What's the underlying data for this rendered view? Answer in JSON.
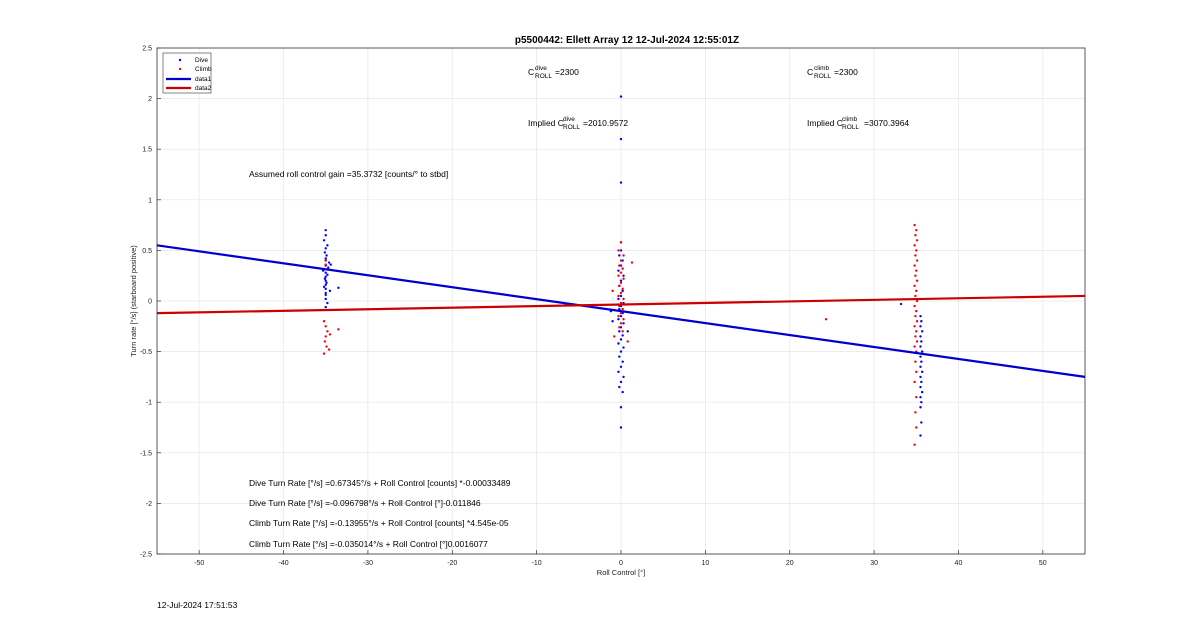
{
  "chart_data": {
    "type": "scatter",
    "title": "p5500442: Ellett Array 12 12-Jul-2024 12:55:01Z",
    "xlabel": "Roll Control [°]",
    "ylabel": "Turn rate [°/s] (starboard positive)",
    "xlim": [
      -55,
      55
    ],
    "ylim": [
      -2.5,
      2.5
    ],
    "xticks": [
      -50,
      -40,
      -30,
      -20,
      -10,
      0,
      10,
      20,
      30,
      40,
      50
    ],
    "yticks": [
      -2.5,
      -2,
      -1.5,
      -1,
      -0.5,
      0,
      0.5,
      1,
      1.5,
      2,
      2.5
    ],
    "xtick_labels": [
      "-50",
      "-40",
      "-30",
      "-20",
      "-10",
      "0",
      "10",
      "20",
      "30",
      "40",
      "50"
    ],
    "ytick_labels": [
      "-2.5",
      "-2",
      "-1.5",
      "-1",
      "-0.5",
      "0",
      "0.5",
      "1",
      "1.5",
      "2",
      "2.5"
    ],
    "grid": true,
    "legend_position": "top-left",
    "series": [
      {
        "name": "Dive",
        "kind": "points",
        "color": "#0000ff",
        "points": [
          [
            -35,
            0.7
          ],
          [
            -35,
            0.65
          ],
          [
            -35.2,
            0.6
          ],
          [
            -34.8,
            0.55
          ],
          [
            -35,
            0.52
          ],
          [
            -35.1,
            0.48
          ],
          [
            -34.9,
            0.45
          ],
          [
            -35,
            0.42
          ],
          [
            -35,
            0.4
          ],
          [
            -34.6,
            0.38
          ],
          [
            -35,
            0.35
          ],
          [
            -34.7,
            0.33
          ],
          [
            -35.3,
            0.3
          ],
          [
            -35,
            0.28
          ],
          [
            -34.8,
            0.26
          ],
          [
            -35,
            0.24
          ],
          [
            -35.1,
            0.22
          ],
          [
            -35,
            0.2
          ],
          [
            -34.9,
            0.18
          ],
          [
            -35,
            0.16
          ],
          [
            -35.2,
            0.14
          ],
          [
            -35,
            0.12
          ],
          [
            -34.5,
            0.1
          ],
          [
            -35,
            0.08
          ],
          [
            -35,
            0.06
          ],
          [
            -33.5,
            0.13
          ],
          [
            -35,
            0.02
          ],
          [
            -34.8,
            -0.02
          ],
          [
            -35,
            -0.06
          ],
          [
            -34.4,
            0.36
          ],
          [
            -35.3,
            0.31
          ],
          [
            0,
            2.02
          ],
          [
            0,
            1.6
          ],
          [
            0,
            1.17
          ],
          [
            0,
            0.58
          ],
          [
            0,
            0.5
          ],
          [
            -0.2,
            0.45
          ],
          [
            0.2,
            0.4
          ],
          [
            0,
            0.35
          ],
          [
            -0.3,
            0.3
          ],
          [
            0.3,
            0.25
          ],
          [
            0,
            0.2
          ],
          [
            -0.2,
            0.15
          ],
          [
            0.2,
            0.1
          ],
          [
            0,
            0.05
          ],
          [
            -0.3,
            0.02
          ],
          [
            0.3,
            -0.02
          ],
          [
            0,
            -0.05
          ],
          [
            -0.2,
            -0.08
          ],
          [
            0.2,
            -0.12
          ],
          [
            0,
            -0.15
          ],
          [
            -0.3,
            -0.18
          ],
          [
            0.3,
            -0.22
          ],
          [
            0,
            -0.26
          ],
          [
            -0.2,
            -0.3
          ],
          [
            0.2,
            -0.34
          ],
          [
            0,
            -0.38
          ],
          [
            -0.3,
            -0.42
          ],
          [
            0.3,
            -0.46
          ],
          [
            0,
            -0.5
          ],
          [
            -0.2,
            -0.55
          ],
          [
            0.2,
            -0.6
          ],
          [
            0,
            -0.65
          ],
          [
            -0.3,
            -0.7
          ],
          [
            0.3,
            -0.75
          ],
          [
            0,
            -0.8
          ],
          [
            -0.2,
            -0.85
          ],
          [
            0.2,
            -0.9
          ],
          [
            0,
            -1.05
          ],
          [
            0,
            -1.25
          ],
          [
            -1,
            -0.2
          ],
          [
            -1.2,
            -0.1
          ],
          [
            0.8,
            -0.3
          ],
          [
            35.5,
            -0.15
          ],
          [
            35.6,
            -0.2
          ],
          [
            35.5,
            -0.25
          ],
          [
            35.7,
            -0.3
          ],
          [
            35.5,
            -0.35
          ],
          [
            35.6,
            -0.4
          ],
          [
            35.5,
            -0.45
          ],
          [
            35.7,
            -0.5
          ],
          [
            35.5,
            -0.55
          ],
          [
            35.6,
            -0.6
          ],
          [
            35.5,
            -0.65
          ],
          [
            35.7,
            -0.7
          ],
          [
            35.5,
            -0.75
          ],
          [
            35.6,
            -0.8
          ],
          [
            35.5,
            -0.85
          ],
          [
            35.7,
            -0.9
          ],
          [
            35.5,
            -0.95
          ],
          [
            35.6,
            -1.0
          ],
          [
            35.5,
            -1.05
          ],
          [
            35.6,
            -1.2
          ],
          [
            35.5,
            -1.33
          ],
          [
            33.2,
            -0.03
          ]
        ]
      },
      {
        "name": "Climb",
        "kind": "points",
        "color": "#ff0000",
        "points": [
          [
            -35.2,
            -0.2
          ],
          [
            -35,
            -0.25
          ],
          [
            -34.8,
            -0.3
          ],
          [
            -35,
            -0.35
          ],
          [
            -35.1,
            -0.4
          ],
          [
            -34.9,
            -0.45
          ],
          [
            -35.2,
            -0.52
          ],
          [
            -34.6,
            -0.48
          ],
          [
            -34.5,
            -0.33
          ],
          [
            -33.5,
            -0.28
          ],
          [
            -35,
            0.4
          ],
          [
            -35,
            0.36
          ],
          [
            0,
            0.58
          ],
          [
            -0.3,
            0.5
          ],
          [
            0.3,
            0.45
          ],
          [
            0,
            0.4
          ],
          [
            -0.2,
            0.35
          ],
          [
            0.2,
            0.32
          ],
          [
            0,
            0.28
          ],
          [
            -0.3,
            0.25
          ],
          [
            0.3,
            0.22
          ],
          [
            0,
            0.18
          ],
          [
            -0.2,
            0.15
          ],
          [
            0.2,
            0.12
          ],
          [
            0,
            0.08
          ],
          [
            -0.3,
            0.05
          ],
          [
            0.3,
            0.02
          ],
          [
            0,
            -0.02
          ],
          [
            -0.2,
            -0.05
          ],
          [
            0.2,
            -0.08
          ],
          [
            0,
            -0.12
          ],
          [
            -0.3,
            -0.15
          ],
          [
            0.3,
            -0.18
          ],
          [
            0,
            -0.22
          ],
          [
            -0.2,
            -0.26
          ],
          [
            0.2,
            -0.3
          ],
          [
            -1,
            0.1
          ],
          [
            0.8,
            -0.4
          ],
          [
            -0.8,
            -0.35
          ],
          [
            1.3,
            0.38
          ],
          [
            24.3,
            -0.18
          ],
          [
            34.8,
            0.75
          ],
          [
            35,
            0.7
          ],
          [
            34.9,
            0.65
          ],
          [
            35.1,
            0.6
          ],
          [
            34.8,
            0.55
          ],
          [
            35,
            0.5
          ],
          [
            34.9,
            0.45
          ],
          [
            35.1,
            0.4
          ],
          [
            34.8,
            0.35
          ],
          [
            35,
            0.3
          ],
          [
            34.9,
            0.25
          ],
          [
            35.1,
            0.2
          ],
          [
            34.8,
            0.15
          ],
          [
            35,
            0.1
          ],
          [
            34.9,
            0.05
          ],
          [
            35.1,
            0.0
          ],
          [
            34.8,
            -0.05
          ],
          [
            35,
            -0.1
          ],
          [
            34.9,
            -0.15
          ],
          [
            35.1,
            -0.2
          ],
          [
            34.8,
            -0.25
          ],
          [
            35,
            -0.3
          ],
          [
            34.9,
            -0.35
          ],
          [
            35.1,
            -0.4
          ],
          [
            34.8,
            -0.45
          ],
          [
            35,
            -0.5
          ],
          [
            34.9,
            -0.6
          ],
          [
            35,
            -0.7
          ],
          [
            34.8,
            -0.8
          ],
          [
            35,
            -0.95
          ],
          [
            34.9,
            -1.1
          ],
          [
            35,
            -1.25
          ],
          [
            34.8,
            -1.42
          ]
        ]
      },
      {
        "name": "data1",
        "kind": "line",
        "color": "#0000cc",
        "points": [
          [
            -55,
            0.55
          ],
          [
            55,
            -0.75
          ]
        ]
      },
      {
        "name": "data2",
        "kind": "line",
        "color": "#cc0000",
        "points": [
          [
            -55,
            -0.12
          ],
          [
            55,
            0.05
          ]
        ]
      }
    ],
    "annotations": {
      "c_dive": {
        "prefix": "C",
        "sup": "dive",
        "sub": "ROLL",
        "value": "=2300"
      },
      "c_climb": {
        "prefix": "C",
        "sup": "climb",
        "sub": "ROLL",
        "value": "=2300"
      },
      "implied_dive": {
        "prefix": "Implied C",
        "sup": "dive",
        "sub": "ROLL",
        "value": "=2010.9572"
      },
      "implied_climb": {
        "prefix": "Implied C",
        "sup": "climb",
        "sub": "ROLL",
        "value": "=3070.3964"
      },
      "gain": "Assumed roll control gain =35.3732 [counts/° to stbd]",
      "fits": [
        "Dive Turn Rate [°/s] =0.67345°/s + Roll Control [counts] *-0.00033489",
        "Dive Turn Rate [°/s] =-0.096798°/s + Roll Control [°]-0.011846",
        "Climb Turn Rate [°/s] =-0.13955°/s + Roll Control [counts] *4.545e-05",
        "Climb Turn Rate [°/s] =-0.035014°/s + Roll Control [°]0.0016077"
      ]
    }
  },
  "timestamp": "12-Jul-2024 17:51:53"
}
